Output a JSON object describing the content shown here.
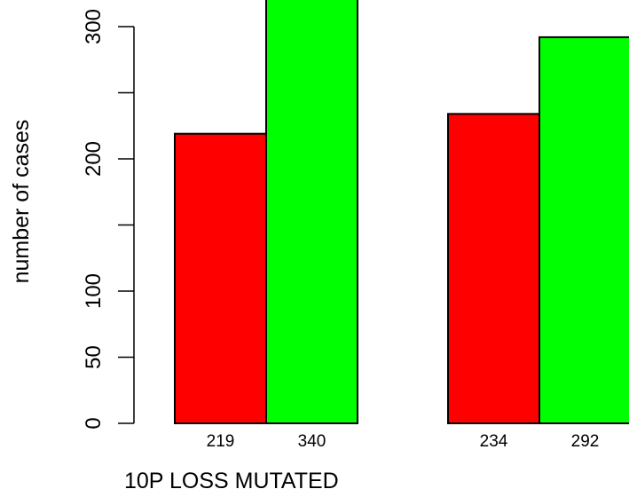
{
  "chart_data": {
    "type": "bar",
    "categories": [
      "219",
      "340",
      "234",
      "292"
    ],
    "values": [
      219,
      340,
      234,
      292
    ],
    "groups": [
      [
        0,
        1
      ],
      [
        2,
        3
      ]
    ],
    "bar_colors": [
      "#ff0000",
      "#00ff00",
      "#ff0000",
      "#00ff00"
    ],
    "ylabel": "number of cases",
    "xlabel": "10P LOSS MUTATED",
    "yticks": [
      0,
      50,
      100,
      150,
      200,
      250,
      300
    ],
    "ytick_labels": [
      "0",
      "50",
      "100",
      "",
      "200",
      "",
      "300"
    ],
    "ylim": [
      0,
      340
    ],
    "grid": false
  }
}
